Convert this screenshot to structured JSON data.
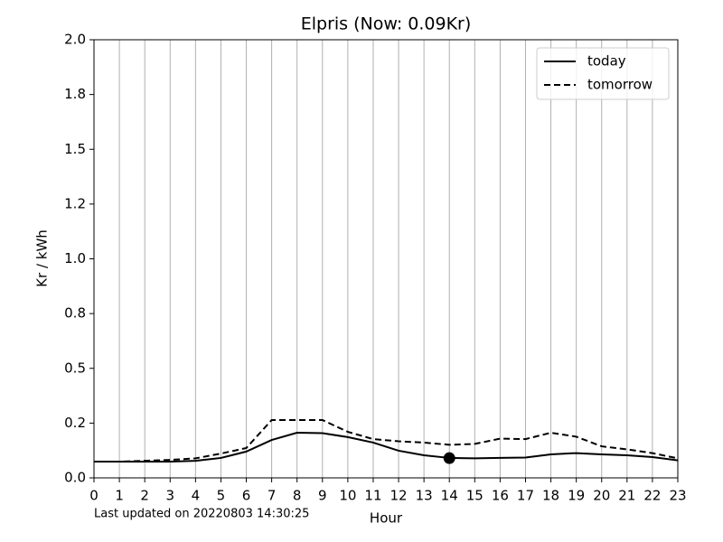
{
  "chart_data": {
    "type": "line",
    "title": "Elpris (Now: 0.09Kr)",
    "xlabel": "Hour",
    "ylabel": "Kr / kWh",
    "annotation": "Last updated on 20220803 14:30:25",
    "x": [
      0,
      1,
      2,
      3,
      4,
      5,
      6,
      7,
      8,
      9,
      10,
      11,
      12,
      13,
      14,
      15,
      16,
      17,
      18,
      19,
      20,
      21,
      22,
      23
    ],
    "series": [
      {
        "name": "today",
        "color": "#000000",
        "dash": "solid",
        "values": [
          0.074,
          0.074,
          0.074,
          0.074,
          0.078,
          0.091,
          0.12,
          0.173,
          0.206,
          0.204,
          0.186,
          0.161,
          0.124,
          0.103,
          0.091,
          0.089,
          0.091,
          0.093,
          0.107,
          0.113,
          0.107,
          0.103,
          0.095,
          0.08
        ]
      },
      {
        "name": "tomorrow",
        "color": "#000000",
        "dash": "dashed",
        "values": [
          0.074,
          0.074,
          0.078,
          0.082,
          0.089,
          0.111,
          0.136,
          0.264,
          0.264,
          0.264,
          0.21,
          0.177,
          0.167,
          0.161,
          0.151,
          0.155,
          0.179,
          0.177,
          0.206,
          0.188,
          0.144,
          0.13,
          0.113,
          0.089
        ]
      }
    ],
    "marker": {
      "x": 14,
      "value": 0.09,
      "color": "#000000"
    },
    "xlim": [
      0,
      23
    ],
    "xticks": [
      0,
      1,
      2,
      3,
      4,
      5,
      6,
      7,
      8,
      9,
      10,
      11,
      12,
      13,
      14,
      15,
      16,
      17,
      18,
      19,
      20,
      21,
      22,
      23
    ],
    "ylim": [
      0,
      2
    ],
    "yticks": [
      {
        "value": 0,
        "label": "0.0"
      },
      {
        "value": 0.25,
        "label": "0.2"
      },
      0.5,
      {
        "value": 0.75,
        "label": "0.8"
      },
      {
        "value": 1,
        "label": "1.0"
      },
      {
        "value": 1.25,
        "label": "1.2"
      },
      1.5,
      {
        "value": 1.75,
        "label": "1.8"
      },
      {
        "value": 2,
        "label": "2.0"
      }
    ],
    "grid": "x",
    "legend": "upper right"
  }
}
